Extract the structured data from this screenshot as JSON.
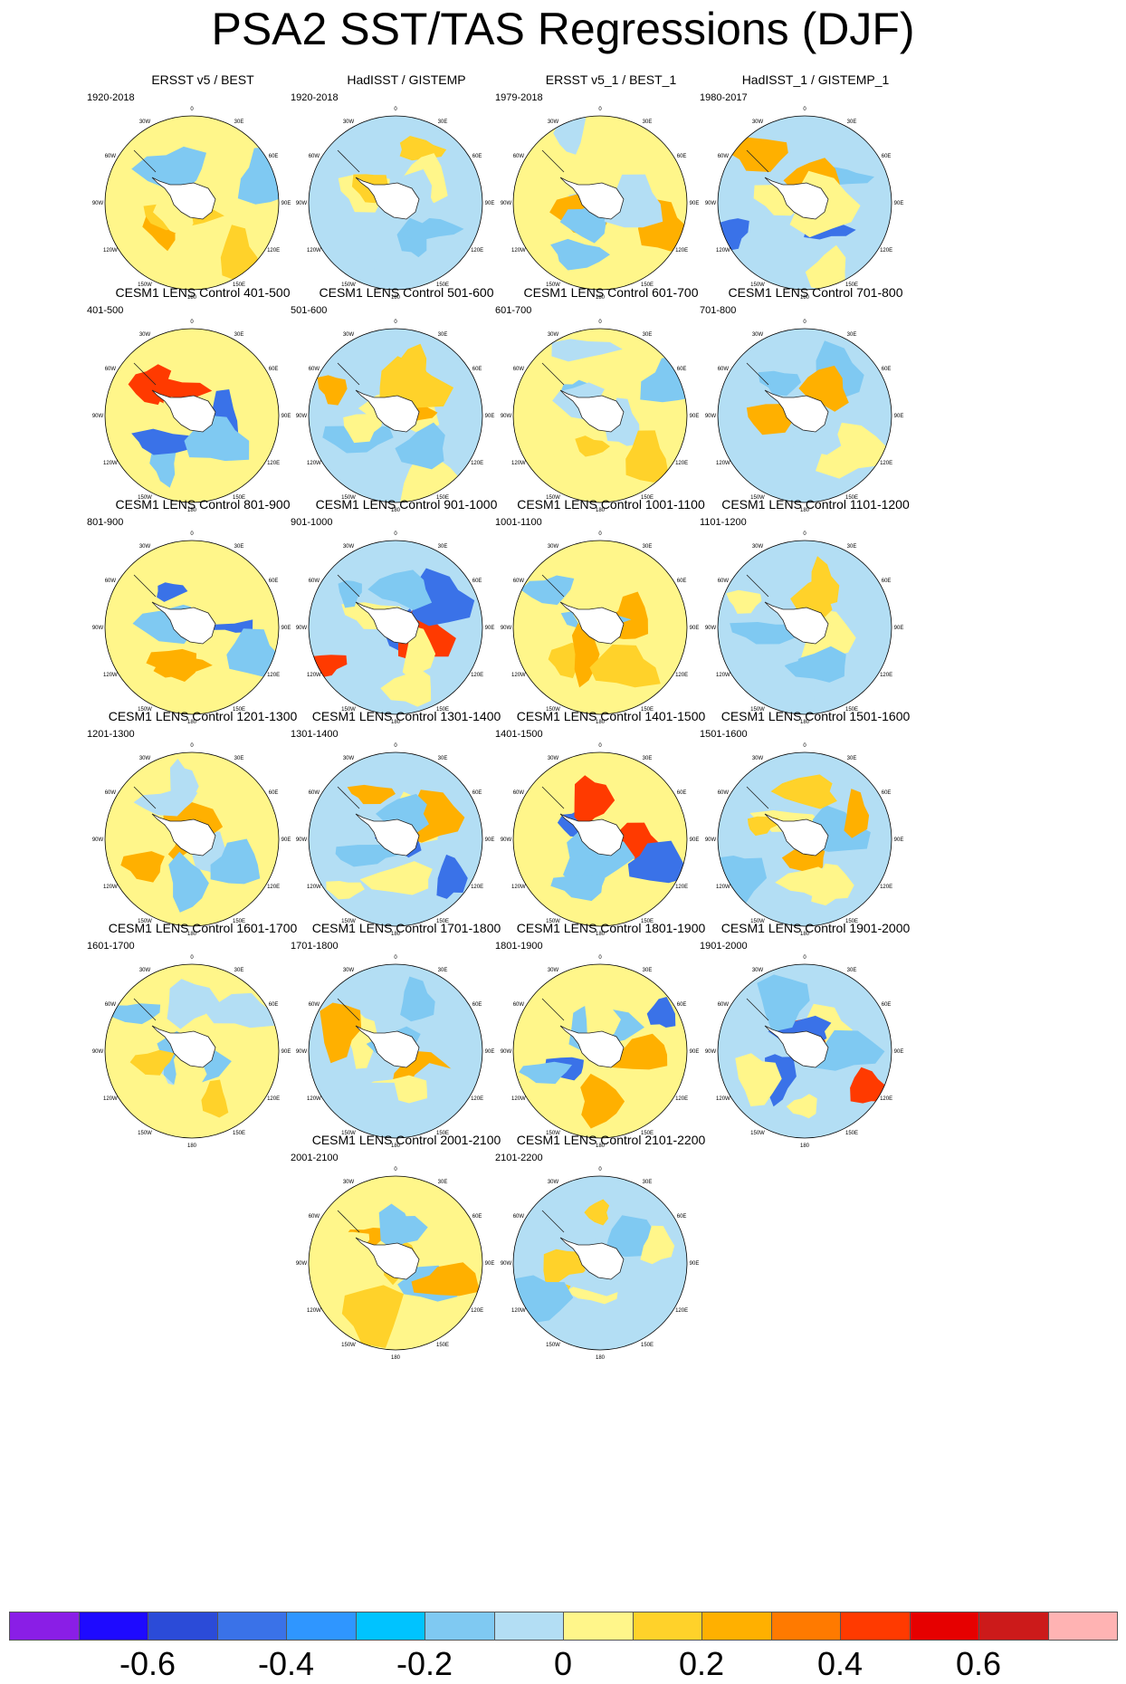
{
  "title": "PSA2 SST/TAS Regressions (DJF)",
  "map_labels": {
    "lon_0": "0",
    "lon_30E": "30E",
    "lon_60E": "60E",
    "lon_90E": "90E",
    "lon_120E": "120E",
    "lon_150E": "150E",
    "lon_180": "180",
    "lon_150W": "150W",
    "lon_120W": "120W",
    "lon_90W": "90W",
    "lon_60W": "60W",
    "lon_30W": "30W"
  },
  "panels": [
    {
      "title": "ERSST v5 / BEST",
      "period": "1920-2018"
    },
    {
      "title": "HadISST / GISTEMP",
      "period": "1920-2018"
    },
    {
      "title": "ERSST v5_1 / BEST_1",
      "period": "1979-2018"
    },
    {
      "title": "HadISST_1 / GISTEMP_1",
      "period": "1980-2017"
    },
    {
      "title": "CESM1 LENS Control 401-500",
      "period": "401-500"
    },
    {
      "title": "CESM1 LENS Control 501-600",
      "period": "501-600"
    },
    {
      "title": "CESM1 LENS Control 601-700",
      "period": "601-700"
    },
    {
      "title": "CESM1 LENS Control 701-800",
      "period": "701-800"
    },
    {
      "title": "CESM1 LENS Control 801-900",
      "period": "801-900"
    },
    {
      "title": "CESM1 LENS Control 901-1000",
      "period": "901-1000"
    },
    {
      "title": "CESM1 LENS Control 1001-1100",
      "period": "1001-1100"
    },
    {
      "title": "CESM1 LENS Control 1101-1200",
      "period": "1101-1200"
    },
    {
      "title": "CESM1 LENS Control 1201-1300",
      "period": "1201-1300"
    },
    {
      "title": "CESM1 LENS Control 1301-1400",
      "period": "1301-1400"
    },
    {
      "title": "CESM1 LENS Control 1401-1500",
      "period": "1401-1500"
    },
    {
      "title": "CESM1 LENS Control 1501-1600",
      "period": "1501-1600"
    },
    {
      "title": "CESM1 LENS Control 1601-1700",
      "period": "1601-1700"
    },
    {
      "title": "CESM1 LENS Control 1701-1800",
      "period": "1701-1800"
    },
    {
      "title": "CESM1 LENS Control 1801-1900",
      "period": "1801-1900"
    },
    {
      "title": "CESM1 LENS Control 1901-2000",
      "period": "1901-2000"
    },
    {
      "title": "CESM1 LENS Control 2001-2100",
      "period": "2001-2100"
    },
    {
      "title": "CESM1 LENS Control 2101-2200",
      "period": "2101-2200"
    }
  ],
  "colorbar": {
    "colors": [
      "#8a1ee6",
      "#1e0aff",
      "#2b4bd8",
      "#3a72e8",
      "#2f96ff",
      "#00c3ff",
      "#7fc9f2",
      "#b3def4",
      "#fff68a",
      "#ffd22a",
      "#ffb000",
      "#ff7a00",
      "#ff3a00",
      "#e60000",
      "#cc1a1a",
      "#ffb3b3"
    ],
    "labels": [
      "-0.6",
      "-0.4",
      "-0.2",
      "0",
      "0.2",
      "0.4",
      "0.6"
    ]
  },
  "colors": {
    "neutral_blue": "#b3def4",
    "neutral_yellow": "#fff68a",
    "light_yellow": "#ffd22a",
    "orange": "#ffb000",
    "blue": "#7fc9f2",
    "deep_blue": "#3a72e8",
    "red": "#ff3a00",
    "land": "#ffffff"
  }
}
